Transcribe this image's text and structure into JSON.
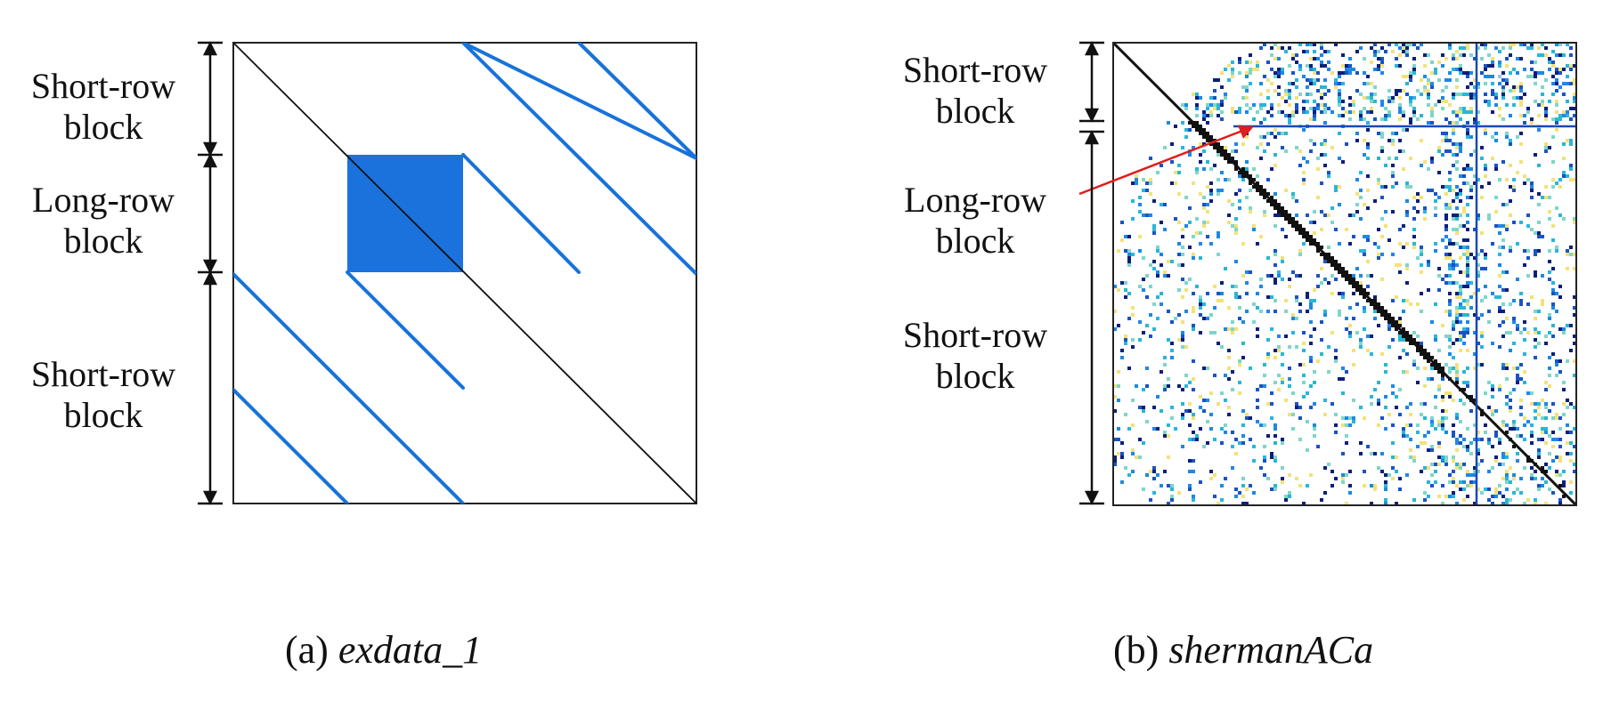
{
  "panel_a": {
    "labels": {
      "top": "Short-row block",
      "middle": "Long-row block",
      "bottom": "Short-row block"
    },
    "caption_prefix": "(a)",
    "caption_name": "exdata_1"
  },
  "panel_b": {
    "labels": {
      "top": "Short-row block",
      "middle": "Long-row block",
      "bottom": "Short-row block"
    },
    "caption_prefix": "(b)",
    "caption_name": "shermanACa"
  },
  "colors": {
    "stripe": "#1873d8",
    "diagonal": "#111111",
    "arrow": "#e01e1e",
    "dense_block": "#1b72dc",
    "matrix_palette": [
      "#0b1f7a",
      "#1a53c4",
      "#1e88e5",
      "#29b6d8",
      "#7fd6c9",
      "#f2e27a",
      "#111111"
    ]
  }
}
